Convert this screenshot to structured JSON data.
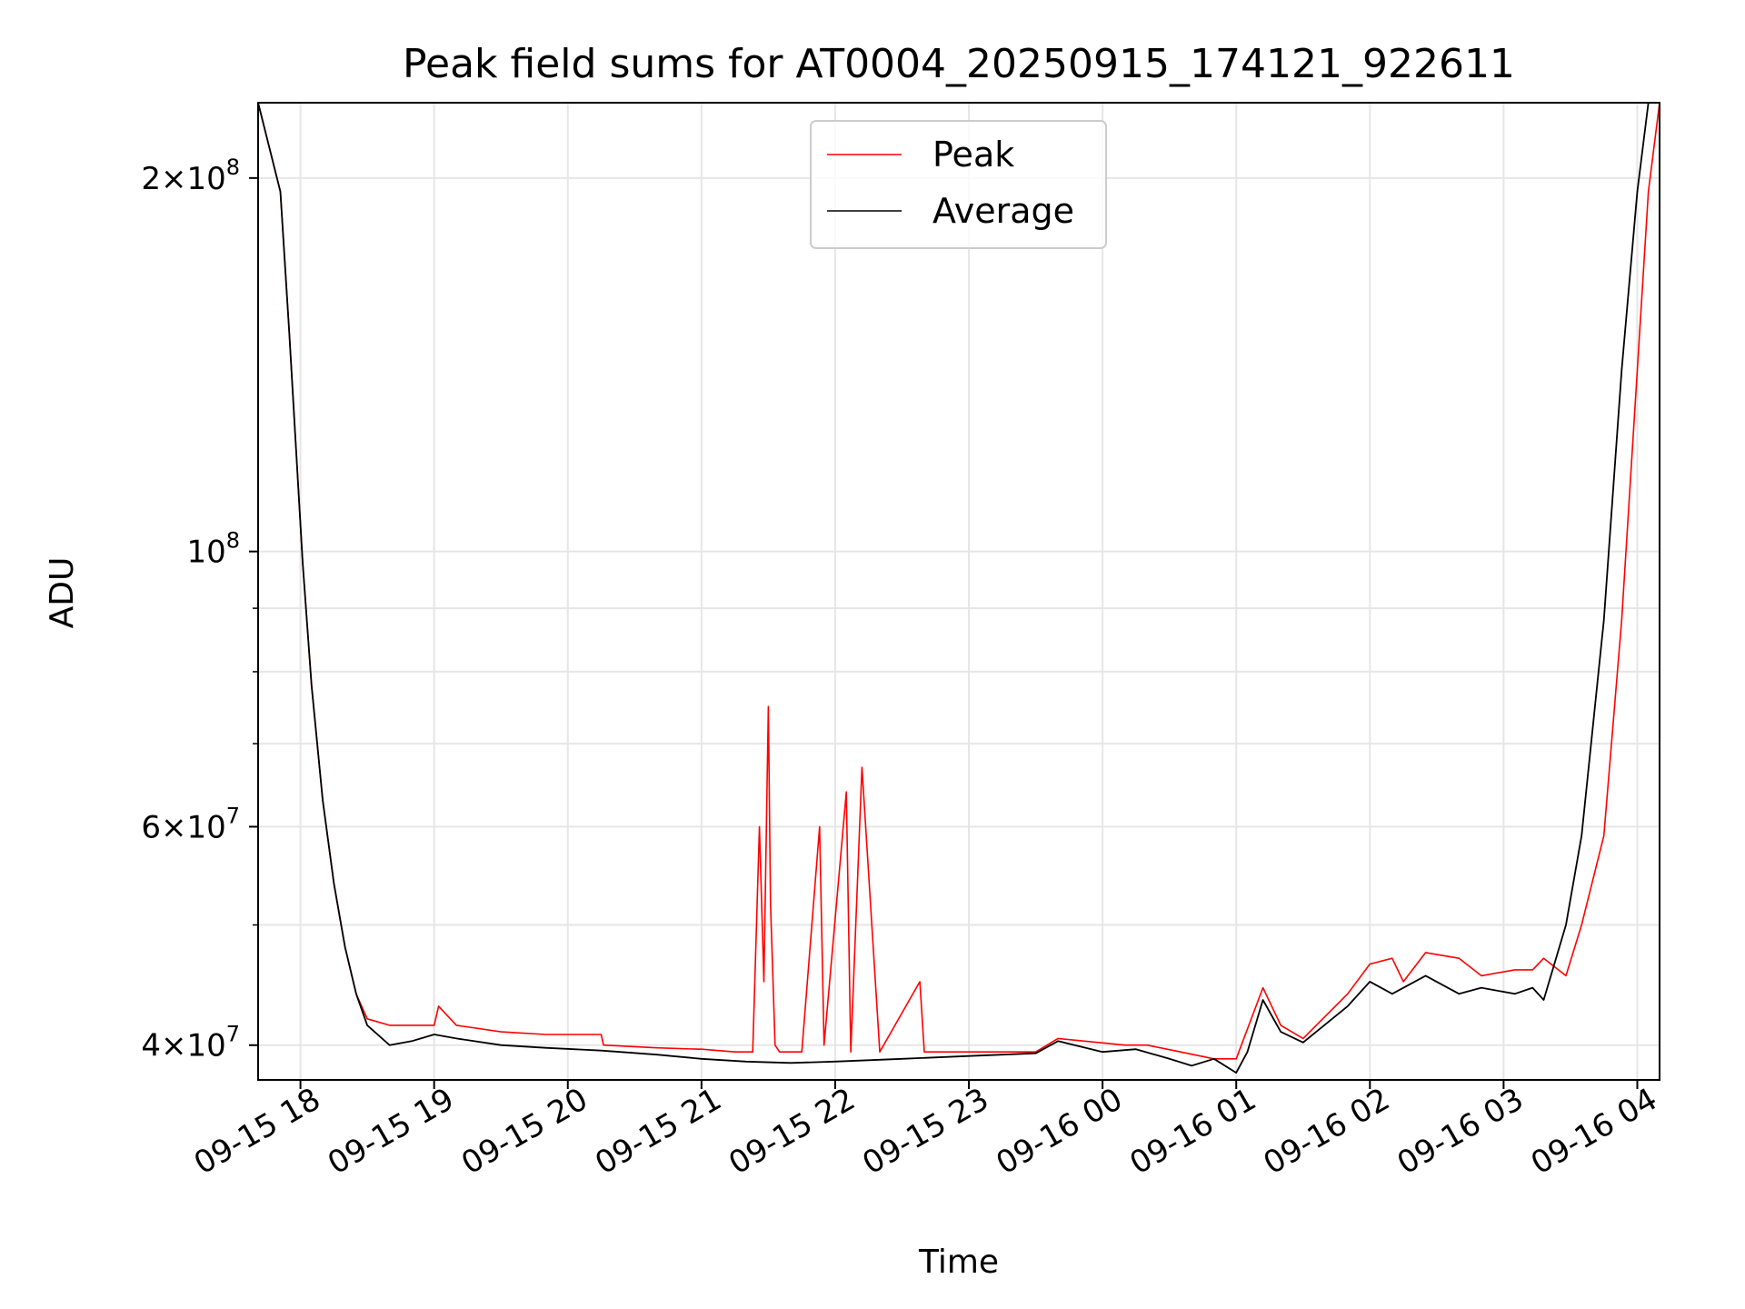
{
  "chart_data": {
    "type": "line",
    "title": "Peak field sums for AT0004_20250915_174121_922611",
    "xlabel": "Time",
    "ylabel": "ADU",
    "y_scale": "log",
    "ylim": [
      37500000,
      230000000
    ],
    "xlim": [
      "2025-09-15 17:41",
      "2025-09-16 04:10"
    ],
    "grid": true,
    "legend": {
      "placement": "top-center"
    },
    "x_ticks": [
      "09-15 18",
      "09-15 19",
      "09-15 20",
      "09-15 21",
      "09-15 22",
      "09-15 23",
      "09-16 00",
      "09-16 01",
      "09-16 02",
      "09-16 03",
      "09-16 04"
    ],
    "y_ticks": [
      {
        "value": 40000000,
        "mantissa": "4",
        "exp": "7"
      },
      {
        "value": 60000000,
        "mantissa": "6",
        "exp": "7"
      },
      {
        "value": 100000000,
        "mantissa": "",
        "exp": "8"
      },
      {
        "value": 200000000,
        "mantissa": "2",
        "exp": "8"
      }
    ],
    "series": [
      {
        "name": "Peak",
        "color": "#ff0000",
        "x": [
          "2025-09-15 17:41",
          "2025-09-15 17:51",
          "2025-09-15 17:55",
          "2025-09-15 18:01",
          "2025-09-15 18:05",
          "2025-09-15 18:10",
          "2025-09-15 18:15",
          "2025-09-15 18:20",
          "2025-09-15 18:25",
          "2025-09-15 18:30",
          "2025-09-15 18:40",
          "2025-09-15 18:50",
          "2025-09-15 19:00",
          "2025-09-15 19:02",
          "2025-09-15 19:10",
          "2025-09-15 19:30",
          "2025-09-15 19:50",
          "2025-09-15 20:15",
          "2025-09-15 20:16",
          "2025-09-15 20:40",
          "2025-09-15 20:59",
          "2025-09-15 21:00",
          "2025-09-15 21:15",
          "2025-09-15 21:23",
          "2025-09-15 21:26",
          "2025-09-15 21:28",
          "2025-09-15 21:30",
          "2025-09-15 21:31",
          "2025-09-15 21:33",
          "2025-09-15 21:35",
          "2025-09-15 21:45",
          "2025-09-15 21:53",
          "2025-09-15 21:55",
          "2025-09-15 22:05",
          "2025-09-15 22:07",
          "2025-09-15 22:12",
          "2025-09-15 22:20",
          "2025-09-15 22:38",
          "2025-09-15 22:40",
          "2025-09-15 23:00",
          "2025-09-15 23:30",
          "2025-09-15 23:40",
          "2025-09-16 00:10",
          "2025-09-16 00:20",
          "2025-09-16 00:35",
          "2025-09-16 00:50",
          "2025-09-16 01:00",
          "2025-09-16 01:12",
          "2025-09-16 01:20",
          "2025-09-16 01:30",
          "2025-09-16 01:50",
          "2025-09-16 02:00",
          "2025-09-16 02:10",
          "2025-09-16 02:15",
          "2025-09-16 02:25",
          "2025-09-16 02:40",
          "2025-09-16 02:50",
          "2025-09-16 03:05",
          "2025-09-16 03:13",
          "2025-09-16 03:18",
          "2025-09-16 03:28",
          "2025-09-16 03:35",
          "2025-09-16 03:45",
          "2025-09-16 03:53",
          "2025-09-16 04:00",
          "2025-09-16 04:05",
          "2025-09-16 04:10"
        ],
        "y": [
          230000000,
          195000000,
          150000000,
          98000000,
          78000000,
          63000000,
          54000000,
          48000000,
          44000000,
          42000000,
          41500000,
          41500000,
          41500000,
          43000000,
          41500000,
          41000000,
          40800000,
          40800000,
          40000000,
          39800000,
          39700000,
          39700000,
          39500000,
          39500000,
          60000000,
          45000000,
          75000000,
          52000000,
          40000000,
          39500000,
          39500000,
          60000000,
          40000000,
          64000000,
          39500000,
          67000000,
          39500000,
          45000000,
          39500000,
          39500000,
          39500000,
          40500000,
          40000000,
          40000000,
          39500000,
          39000000,
          39000000,
          44500000,
          41500000,
          40500000,
          44000000,
          46500000,
          47000000,
          45000000,
          47500000,
          47000000,
          45500000,
          46000000,
          46000000,
          47000000,
          45500000,
          50000000,
          59000000,
          88000000,
          140000000,
          195000000,
          230000000
        ]
      },
      {
        "name": "Average",
        "color": "#000000",
        "x": [
          "2025-09-15 17:41",
          "2025-09-15 17:51",
          "2025-09-15 17:55",
          "2025-09-15 18:01",
          "2025-09-15 18:05",
          "2025-09-15 18:10",
          "2025-09-15 18:15",
          "2025-09-15 18:20",
          "2025-09-15 18:25",
          "2025-09-15 18:30",
          "2025-09-15 18:40",
          "2025-09-15 18:50",
          "2025-09-15 19:00",
          "2025-09-15 19:10",
          "2025-09-15 19:30",
          "2025-09-15 19:50",
          "2025-09-15 20:15",
          "2025-09-15 20:40",
          "2025-09-15 21:00",
          "2025-09-15 21:20",
          "2025-09-15 21:40",
          "2025-09-15 22:00",
          "2025-09-15 22:30",
          "2025-09-15 23:00",
          "2025-09-15 23:30",
          "2025-09-15 23:40",
          "2025-09-16 00:00",
          "2025-09-16 00:15",
          "2025-09-16 00:30",
          "2025-09-16 00:40",
          "2025-09-16 00:50",
          "2025-09-16 01:00",
          "2025-09-16 01:05",
          "2025-09-16 01:12",
          "2025-09-16 01:20",
          "2025-09-16 01:30",
          "2025-09-16 01:50",
          "2025-09-16 02:00",
          "2025-09-16 02:10",
          "2025-09-16 02:25",
          "2025-09-16 02:40",
          "2025-09-16 02:50",
          "2025-09-16 03:05",
          "2025-09-16 03:13",
          "2025-09-16 03:18",
          "2025-09-16 03:28",
          "2025-09-16 03:35",
          "2025-09-16 03:45",
          "2025-09-16 03:53",
          "2025-09-16 04:00",
          "2025-09-16 04:05",
          "2025-09-16 04:10"
        ],
        "y": [
          230000000,
          195000000,
          150000000,
          98000000,
          78000000,
          63000000,
          54000000,
          48000000,
          44000000,
          41500000,
          40000000,
          40300000,
          40800000,
          40500000,
          40000000,
          39800000,
          39600000,
          39300000,
          39000000,
          38800000,
          38700000,
          38800000,
          39000000,
          39200000,
          39400000,
          40300000,
          39500000,
          39700000,
          39000000,
          38500000,
          39000000,
          38000000,
          39500000,
          43500000,
          41000000,
          40200000,
          43000000,
          45000000,
          44000000,
          45500000,
          44000000,
          44500000,
          44000000,
          44500000,
          43500000,
          50000000,
          59000000,
          88000000,
          140000000,
          195000000,
          230000000,
          230000000
        ]
      }
    ]
  }
}
